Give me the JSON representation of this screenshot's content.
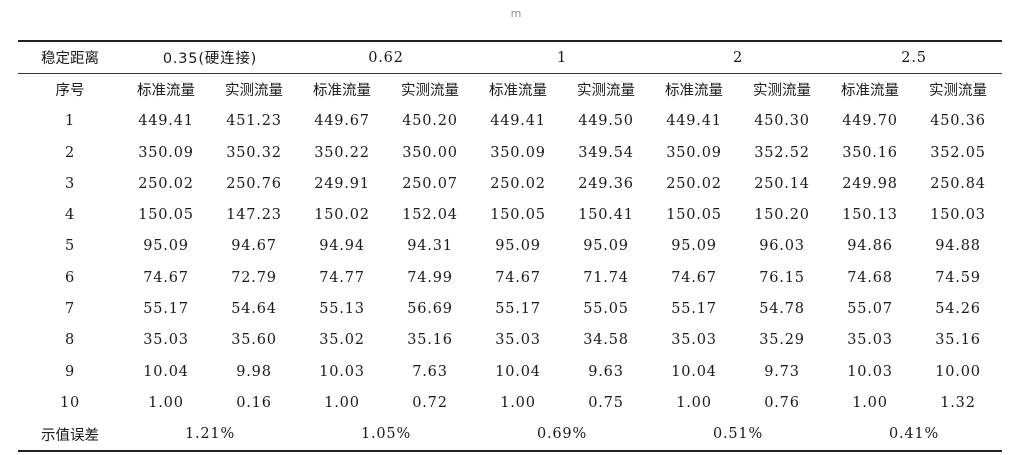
{
  "unit_label": "m",
  "table": {
    "row_label_header": "稳定距离",
    "distance_headers": [
      "0.35(硬连接)",
      "0.62",
      "1",
      "2",
      "2.5"
    ],
    "subheader_label": "序号",
    "column_pair": [
      "标准流量",
      "实测流量"
    ],
    "rows": [
      {
        "index": "1",
        "values": [
          "449.41",
          "451.23",
          "449.67",
          "450.20",
          "449.41",
          "449.50",
          "449.41",
          "450.30",
          "449.70",
          "450.36"
        ]
      },
      {
        "index": "2",
        "values": [
          "350.09",
          "350.32",
          "350.22",
          "350.00",
          "350.09",
          "349.54",
          "350.09",
          "352.52",
          "350.16",
          "352.05"
        ]
      },
      {
        "index": "3",
        "values": [
          "250.02",
          "250.76",
          "249.91",
          "250.07",
          "250.02",
          "249.36",
          "250.02",
          "250.14",
          "249.98",
          "250.84"
        ]
      },
      {
        "index": "4",
        "values": [
          "150.05",
          "147.23",
          "150.02",
          "152.04",
          "150.05",
          "150.41",
          "150.05",
          "150.20",
          "150.13",
          "150.03"
        ]
      },
      {
        "index": "5",
        "values": [
          "95.09",
          "94.67",
          "94.94",
          "94.31",
          "95.09",
          "95.09",
          "95.09",
          "96.03",
          "94.86",
          "94.88"
        ]
      },
      {
        "index": "6",
        "values": [
          "74.67",
          "72.79",
          "74.77",
          "74.99",
          "74.67",
          "71.74",
          "74.67",
          "76.15",
          "74.68",
          "74.59"
        ]
      },
      {
        "index": "7",
        "values": [
          "55.17",
          "54.64",
          "55.13",
          "56.69",
          "55.17",
          "55.05",
          "55.17",
          "54.78",
          "55.07",
          "54.26"
        ]
      },
      {
        "index": "8",
        "values": [
          "35.03",
          "35.60",
          "35.02",
          "35.16",
          "35.03",
          "34.58",
          "35.03",
          "35.29",
          "35.03",
          "35.16"
        ]
      },
      {
        "index": "9",
        "values": [
          "10.04",
          "9.98",
          "10.03",
          "7.63",
          "10.04",
          "9.63",
          "10.04",
          "9.73",
          "10.03",
          "10.00"
        ]
      },
      {
        "index": "10",
        "values": [
          "1.00",
          "0.16",
          "1.00",
          "0.72",
          "1.00",
          "0.75",
          "1.00",
          "0.76",
          "1.00",
          "1.32"
        ]
      }
    ],
    "error_label": "示值误差",
    "errors": [
      "1.21%",
      "1.05%",
      "0.69%",
      "0.51%",
      "0.41%"
    ]
  }
}
